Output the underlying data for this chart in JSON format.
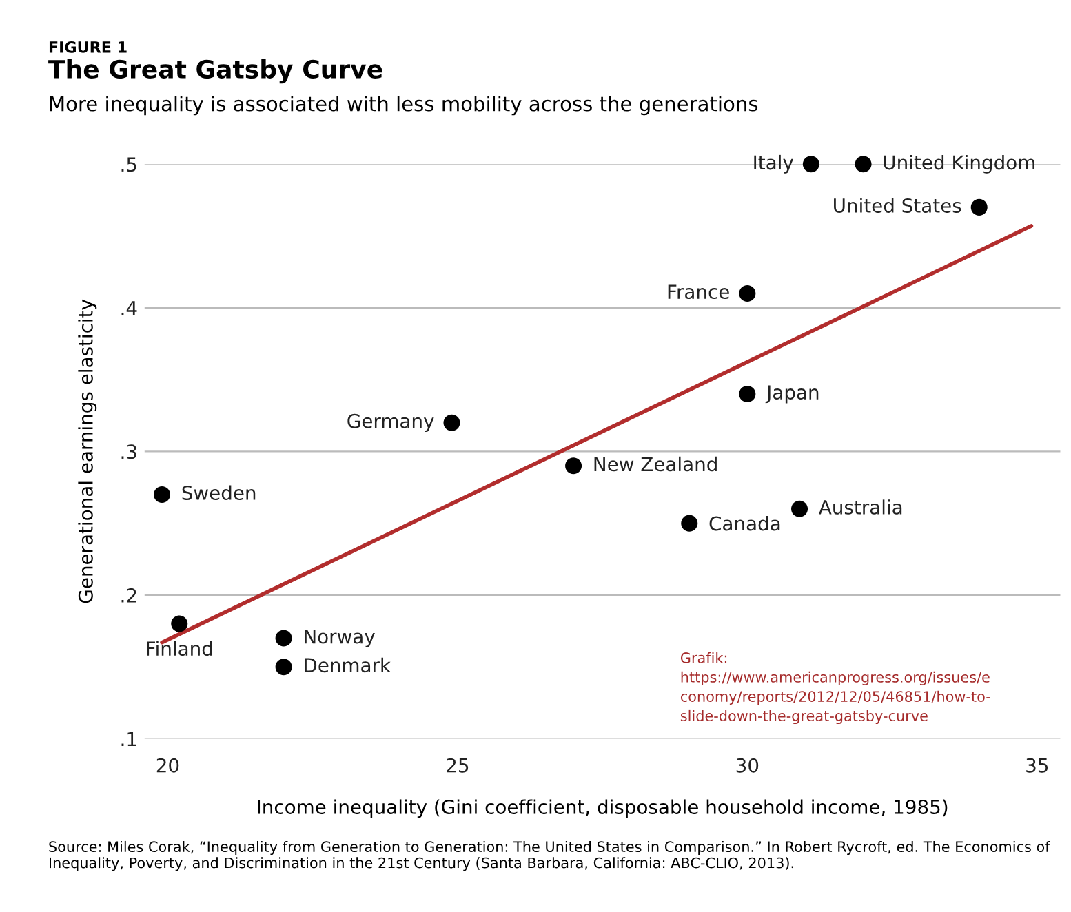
{
  "chart_data": {
    "type": "scatter",
    "title": "The Great Gatsby Curve",
    "subtitle": "More inequality is associated with less mobility across the generations",
    "xlabel": "Income inequality (Gini coefficient, disposable household income, 1985)",
    "ylabel": "Generational earnings elasticity",
    "series": [
      {
        "marker": "circle",
        "color": "#000000",
        "x": [
          31.1,
          32.0,
          34.0,
          30.0,
          30.0,
          24.9,
          27.0,
          19.9,
          30.9,
          29.0,
          20.2,
          22.0,
          22.0
        ],
        "values": [
          0.5,
          0.5,
          0.47,
          0.41,
          0.34,
          0.32,
          0.29,
          0.27,
          0.26,
          0.25,
          0.18,
          0.17,
          0.15
        ]
      },
      {
        "type": "line",
        "marker": "none",
        "color": "#b22d2d",
        "x": [
          19.9,
          34.9
        ],
        "values": [
          0.167,
          0.457
        ]
      }
    ],
    "annotations": [
      {
        "text": "Italy",
        "x": 31.1,
        "y": 0.5
      },
      {
        "text": "United Kingdom",
        "x": 32.0,
        "y": 0.5
      },
      {
        "text": "United States",
        "x": 34.0,
        "y": 0.47
      },
      {
        "text": "France",
        "x": 30.0,
        "y": 0.41
      },
      {
        "text": "Japan",
        "x": 30.0,
        "y": 0.34
      },
      {
        "text": "Germany",
        "x": 24.9,
        "y": 0.32
      },
      {
        "text": "New Zealand",
        "x": 27.0,
        "y": 0.29
      },
      {
        "text": "Sweden",
        "x": 19.9,
        "y": 0.27
      },
      {
        "text": "Australia",
        "x": 30.9,
        "y": 0.26
      },
      {
        "text": "Canada",
        "x": 29.0,
        "y": 0.25
      },
      {
        "text": "Finland",
        "x": 20.2,
        "y": 0.18
      },
      {
        "text": "Norway",
        "x": 22.0,
        "y": 0.17
      },
      {
        "text": "Denmark",
        "x": 22.0,
        "y": 0.15
      },
      "FIGURE 1",
      "Source: Miles Corak, “Inequality from Generation to Generation: The United States in Comparison.” In Robert Rycroft, ed. The Economics of Inequality, Poverty, and Discrimination in the 21st Century (Santa Barbara, California: ABC-CLIO, 2013).",
      "Grafik:\nhttps://www.americanprogress.org/issues/e\nconomy/reports/2012/12/05/46851/how-to-\nslide-down-the-great-gatsby-curve"
    ],
    "xlim": [
      19.6,
      35.4
    ],
    "ylim": [
      0.1,
      0.5
    ],
    "xticks": [
      20,
      25,
      30,
      35
    ],
    "yticks": [
      {
        "value": 0.1,
        "label": ".1"
      },
      {
        "value": 0.2,
        "label": ".2"
      },
      {
        "value": 0.3,
        "label": ".3"
      },
      {
        "value": 0.4,
        "label": ".4"
      },
      {
        "value": 0.5,
        "label": ".5"
      }
    ],
    "grid": "y",
    "legend": false
  }
}
